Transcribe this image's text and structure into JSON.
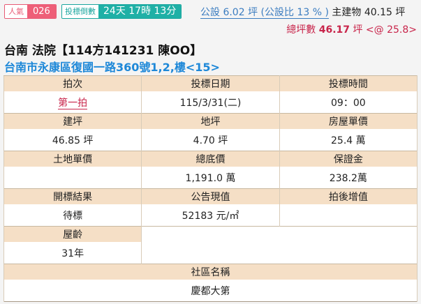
{
  "popularity": {
    "label": "人氣",
    "value": "026"
  },
  "countdown": {
    "label": "投標倒數",
    "value": "24天 17時 13分"
  },
  "area": {
    "public": "公設 6.02 坪 (公設比 13 % )",
    "main": " 主建物 40.15 坪"
  },
  "total": {
    "label": "總坪數 ",
    "value": "46.17",
    "unit": " 坪 <@ 25.8>"
  },
  "title": "台南 法院【114方141231 陳OO】",
  "address": "台南市永康區復國一路360號1,2,樓<15>",
  "rows": [
    {
      "h": [
        "拍次",
        "投標日期",
        "投標時間"
      ],
      "v": [
        "第一拍",
        "115/3/31(二)",
        "09：00"
      ]
    },
    {
      "h": [
        "建坪",
        "地坪",
        "房屋單價"
      ],
      "v": [
        "46.85 坪",
        "4.70 坪",
        "25.4 萬"
      ]
    },
    {
      "h": [
        "土地單價",
        "總底價",
        "保證金"
      ],
      "v": [
        "",
        "1,191.0 萬",
        "238.2萬"
      ]
    },
    {
      "h": [
        "開標結果",
        "公告現值",
        "拍後增值"
      ],
      "v": [
        "待標",
        "52183 元/㎡",
        ""
      ]
    }
  ],
  "age": {
    "label": "屋齡",
    "value": "31年"
  },
  "community": {
    "label": "社區名稱",
    "value": "慶都大第"
  }
}
